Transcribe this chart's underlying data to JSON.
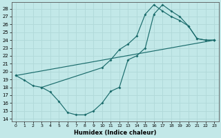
{
  "xlabel": "Humidex (Indice chaleur)",
  "bg_color": "#c2e8e8",
  "line_color": "#1a6b6b",
  "grid_color": "#b0d8d8",
  "xlim": [
    -0.5,
    23.5
  ],
  "ylim": [
    13.7,
    28.8
  ],
  "xticks": [
    0,
    1,
    2,
    3,
    4,
    5,
    6,
    7,
    8,
    9,
    10,
    11,
    12,
    13,
    14,
    15,
    16,
    17,
    18,
    19,
    20,
    21,
    22,
    23
  ],
  "yticks": [
    14,
    15,
    16,
    17,
    18,
    19,
    20,
    21,
    22,
    23,
    24,
    25,
    26,
    27,
    28
  ],
  "line1_x": [
    0,
    1,
    2,
    3,
    4,
    5,
    6,
    7,
    8,
    9,
    10,
    11,
    12,
    13,
    14,
    15,
    16,
    17,
    18,
    19,
    20,
    21,
    22,
    23
  ],
  "line1_y": [
    19.5,
    18.9,
    18.2,
    18.0,
    17.4,
    16.2,
    14.8,
    14.5,
    14.5,
    15.0,
    16.0,
    17.5,
    18.0,
    21.5,
    22.0,
    23.0,
    27.3,
    28.5,
    27.7,
    27.0,
    25.8,
    24.2,
    24.0,
    24.0
  ],
  "line2_x": [
    0,
    23
  ],
  "line2_y": [
    19.5,
    24.0
  ],
  "line3_x": [
    3,
    10,
    11,
    12,
    13,
    14,
    15,
    16,
    17,
    18,
    19,
    20,
    21,
    22,
    23
  ],
  "line3_y": [
    18.0,
    20.5,
    21.5,
    22.8,
    23.5,
    24.5,
    27.3,
    28.5,
    27.7,
    27.0,
    26.5,
    25.8,
    24.2,
    24.0,
    24.0
  ]
}
